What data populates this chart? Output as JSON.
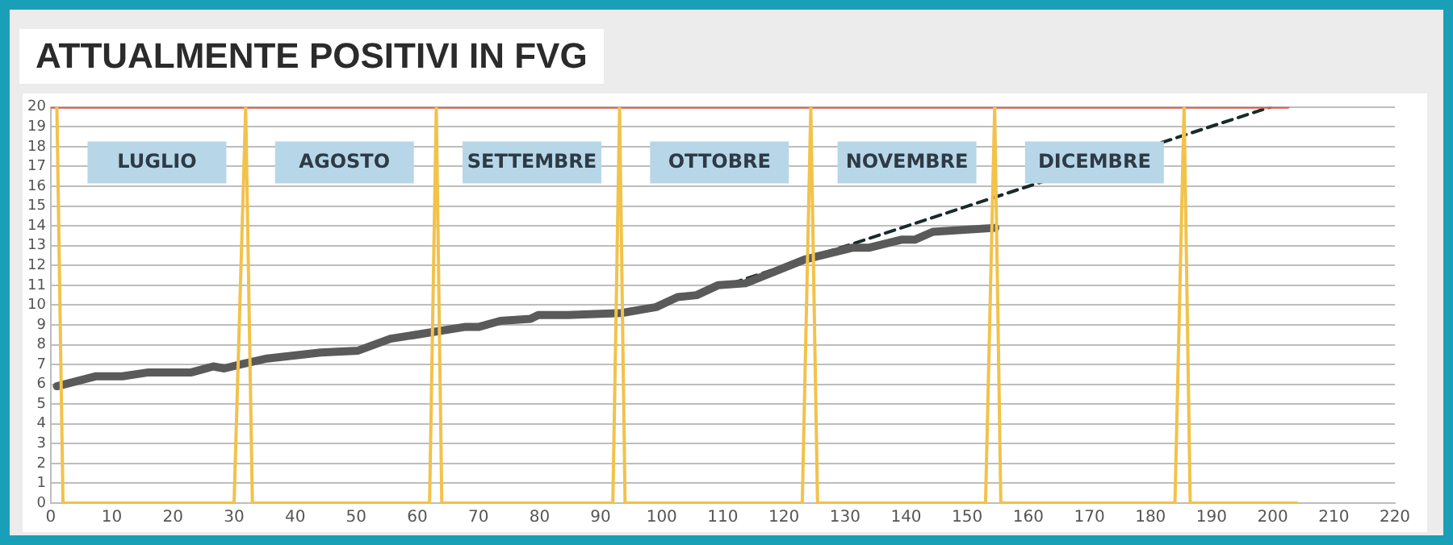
{
  "chart_data": {
    "type": "line",
    "title": "ATTUALMENTE POSITIVI IN FVG",
    "series": [
      {
        "color": "#f2c24a",
        "x": [
          1,
          2,
          30,
          31.9,
          33,
          62,
          63.1,
          64,
          92,
          93.1,
          94,
          123,
          124.4,
          125.5,
          153,
          154.5,
          155.5,
          184,
          185.5,
          186.5,
          204
        ],
        "values": [
          20,
          0,
          0,
          20,
          0,
          0,
          20,
          0,
          0,
          20,
          0,
          0,
          20,
          0,
          0,
          20,
          0,
          0,
          20,
          0,
          0
        ]
      },
      {
        "color": "#e05a4a",
        "x": [
          0,
          202.5
        ],
        "values": [
          20,
          20
        ]
      },
      {
        "color": "#5a5a5a",
        "x": [
          1,
          7.3,
          11.7,
          16,
          23,
          26.6,
          28.4,
          31,
          35.4,
          44.2,
          50.3,
          55.6,
          61.8,
          67.9,
          70.1,
          73.6,
          78.5,
          79.8,
          84.6,
          93.4,
          99.1,
          102.6,
          105.7,
          109.2,
          113.7,
          123.4,
          131.3,
          134,
          139.2,
          141.4,
          144.4,
          154.6
        ],
        "values": [
          5.9,
          6.4,
          6.4,
          6.6,
          6.6,
          6.9,
          6.8,
          7,
          7.3,
          7.6,
          7.7,
          8.3,
          8.6,
          8.9,
          8.9,
          9.2,
          9.3,
          9.5,
          9.5,
          9.6,
          9.9,
          10.4,
          10.5,
          11,
          11.1,
          12.3,
          12.9,
          12.9,
          13.3,
          13.3,
          13.7,
          13.9
        ]
      },
      {
        "color": "#1a2a2a",
        "line_style": "dashed",
        "x": [
          111.5,
          199.6
        ],
        "values": [
          11.1,
          20
        ]
      }
    ],
    "annotations": [
      "LUGLIO",
      "AGOSTO",
      "SETTEMBRE",
      "OTTOBRE",
      "NOVEMBRE",
      "DICEMBRE"
    ],
    "xlim": [
      0,
      220
    ],
    "xticks": [
      0,
      10,
      20,
      30,
      40,
      50,
      60,
      70,
      80,
      90,
      100,
      110,
      120,
      130,
      140,
      150,
      160,
      170,
      180,
      190,
      200,
      210,
      220
    ],
    "ylim": [
      0,
      20
    ],
    "yticks": [
      0,
      1,
      2,
      3,
      4,
      5,
      6,
      7,
      8,
      9,
      10,
      11,
      12,
      13,
      14,
      15,
      16,
      17,
      18,
      19,
      20
    ],
    "grid": "y",
    "legend": false,
    "marker": "none"
  }
}
